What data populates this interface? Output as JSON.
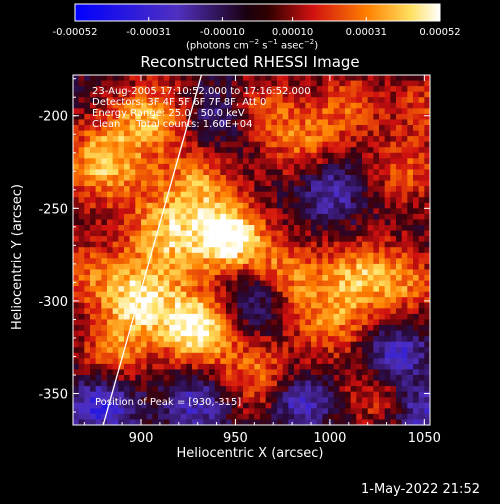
{
  "chart_data": {
    "type": "heatmap",
    "title": "Reconstructed RHESSI Image",
    "xlabel": "Heliocentric X (arcsec)",
    "ylabel": "Heliocentric Y (arcsec)",
    "xlim": [
      864,
      1053
    ],
    "ylim": [
      -367,
      -178
    ],
    "x_ticks": [
      900,
      950,
      1000,
      1050
    ],
    "y_ticks": [
      -200,
      -250,
      -300,
      -350
    ],
    "colorbar": {
      "ticks": [
        "-0.00052",
        "-0.00031",
        "-0.00010",
        "0.00010",
        "0.00031",
        "0.00052"
      ],
      "range": [
        -0.00052,
        0.00052
      ],
      "unit_label": "(photons cm^-2 s^-1 asec^-2)"
    },
    "info_lines": [
      "23-Aug-2005 17:10:52.000 to 17:16:52.000",
      "Detectors: 3F 4F 5F 6F 7F 8F, Att 0",
      "Energy Range: 25.0 - 50.0 keV",
      "Clean     Total counts: 1.60E+04"
    ],
    "peak_label": "Position of Peak = [930,-315]",
    "peak": [
      930,
      -315
    ],
    "limb_line": [
      [
        880,
        -367
      ],
      [
        932,
        -178
      ]
    ]
  },
  "footer_timestamp": "1-May-2022 21:52"
}
